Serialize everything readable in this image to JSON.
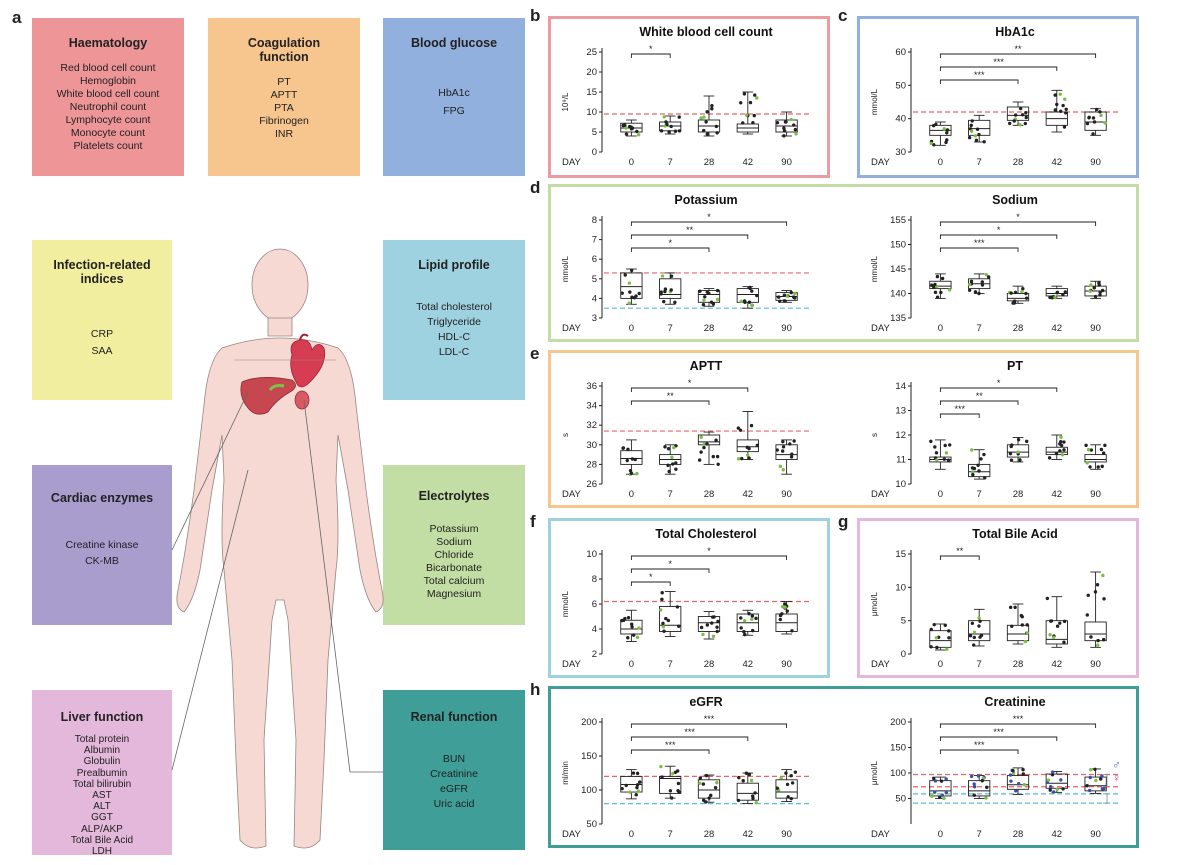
{
  "panel_labels": [
    "a",
    "b",
    "c",
    "d",
    "e",
    "f",
    "g",
    "h"
  ],
  "categories": [
    {
      "id": "haematology",
      "title": "Haematology",
      "color": "#ee9598",
      "items": [
        "Red blood cell count",
        "Hemoglobin",
        "White blood cell count",
        "Neutrophil count",
        "Lymphocyte count",
        "Monocyte count",
        "Platelets count"
      ]
    },
    {
      "id": "coagulation",
      "title": "Coagulation function",
      "color": "#f7c58e",
      "items": [
        "PT",
        "APTT",
        "PTA",
        "Fibrinogen",
        "INR"
      ]
    },
    {
      "id": "glucose",
      "title": "Blood glucose",
      "color": "#92b0dd",
      "items": [
        "HbA1c",
        "FPG"
      ]
    },
    {
      "id": "infection",
      "title": "Infection-related indices",
      "color": "#f2ee9f",
      "items": [
        "CRP",
        "SAA"
      ]
    },
    {
      "id": "lipid",
      "title": "Lipid profile",
      "color": "#9fd2e0",
      "items": [
        "Total cholesterol",
        "Triglyceride",
        "HDL-C",
        "LDL-C"
      ]
    },
    {
      "id": "cardiac",
      "title": "Cardiac enzymes",
      "color": "#a89dcd",
      "items": [
        "Creatine kinase",
        "CK-MB"
      ]
    },
    {
      "id": "electrolytes",
      "title": "Electrolytes",
      "color": "#c3dea5",
      "items": [
        "Potassium",
        "Sodium",
        "Chloride",
        "Bicarbonate",
        "Total calcium",
        "Magnesium"
      ]
    },
    {
      "id": "liver",
      "title": "Liver function",
      "color": "#e4b8da",
      "items": [
        "Total protein",
        "Albumin",
        "Globulin",
        "Prealbumin",
        "Total bilirubin",
        "AST",
        "ALT",
        "GGT",
        "ALP/AKP",
        "Total Bile Acid",
        "LDH"
      ]
    },
    {
      "id": "renal",
      "title": "Renal function",
      "color": "#3f9e98",
      "items": [
        "BUN",
        "Creatinine",
        "eGFR",
        "Uric acid"
      ]
    }
  ],
  "colors": {
    "ref_red": "#e8636b",
    "ref_blue": "#5ab7e0",
    "point_black": "#222222",
    "point_green": "#79c043",
    "point_blue": "#3a4fa5",
    "male_blue": "#3b6fd1",
    "female_pink": "#d0448f"
  },
  "chart_data": [
    {
      "id": "wbc",
      "panel": "b",
      "type": "box",
      "title": "White blood cell count",
      "ylabel": "10⁹/L",
      "xlabel": "DAY",
      "categories": [
        "0",
        "7",
        "28",
        "42",
        "90"
      ],
      "ylim": [
        0,
        25
      ],
      "yticks": [
        0,
        5,
        10,
        15,
        20,
        25
      ],
      "boxes": [
        {
          "min": 4,
          "q1": 5,
          "median": 6,
          "q3": 7.2,
          "max": 8
        },
        {
          "min": 4.5,
          "q1": 5.3,
          "median": 6.5,
          "q3": 7.5,
          "max": 9
        },
        {
          "min": 4,
          "q1": 5,
          "median": 6.5,
          "q3": 8,
          "max": 14
        },
        {
          "min": 4.5,
          "q1": 5,
          "median": 6,
          "q3": 7,
          "max": 15
        },
        {
          "min": 4,
          "q1": 5,
          "median": 6.5,
          "q3": 8,
          "max": 10
        }
      ],
      "ref_lines": [
        {
          "value": 9.5,
          "color": "red"
        }
      ],
      "significance": [
        {
          "from": "0",
          "to": "7",
          "label": "*"
        }
      ]
    },
    {
      "id": "hba1c",
      "panel": "c",
      "type": "box",
      "title": "HbA1c",
      "ylabel": "mmol/L",
      "xlabel": "DAY",
      "categories": [
        "0",
        "7",
        "28",
        "42",
        "90"
      ],
      "ylim": [
        30,
        60
      ],
      "yticks": [
        30,
        40,
        50,
        60
      ],
      "boxes": [
        {
          "min": 32,
          "q1": 35,
          "median": 36.5,
          "q3": 38,
          "max": 39
        },
        {
          "min": 33,
          "q1": 35,
          "median": 37,
          "q3": 39.5,
          "max": 41
        },
        {
          "min": 38,
          "q1": 39.5,
          "median": 41,
          "q3": 43.5,
          "max": 45
        },
        {
          "min": 36,
          "q1": 38,
          "median": 40,
          "q3": 42,
          "max": 48.5
        },
        {
          "min": 35,
          "q1": 36.5,
          "median": 39,
          "q3": 42,
          "max": 43
        }
      ],
      "ref_lines": [
        {
          "value": 42,
          "color": "red"
        }
      ],
      "significance": [
        {
          "from": "0",
          "to": "90",
          "label": "**"
        },
        {
          "from": "0",
          "to": "42",
          "label": "***"
        },
        {
          "from": "0",
          "to": "28",
          "label": "***"
        }
      ]
    },
    {
      "id": "potassium",
      "panel": "d",
      "type": "box",
      "title": "Potassium",
      "ylabel": "mmol/L",
      "xlabel": "DAY",
      "categories": [
        "0",
        "7",
        "28",
        "42",
        "90"
      ],
      "ylim": [
        3,
        8
      ],
      "yticks": [
        3,
        4,
        5,
        6,
        7,
        8
      ],
      "boxes": [
        {
          "min": 3.7,
          "q1": 4,
          "median": 4.6,
          "q3": 5.3,
          "max": 5.5
        },
        {
          "min": 3.7,
          "q1": 4,
          "median": 4.2,
          "q3": 5,
          "max": 5.3
        },
        {
          "min": 3.6,
          "q1": 3.8,
          "median": 4.2,
          "q3": 4.4,
          "max": 4.5
        },
        {
          "min": 3.5,
          "q1": 3.8,
          "median": 4.2,
          "q3": 4.5,
          "max": 4.6
        },
        {
          "min": 3.8,
          "q1": 3.9,
          "median": 4.1,
          "q3": 4.3,
          "max": 4.4
        }
      ],
      "ref_lines": [
        {
          "value": 5.3,
          "color": "red"
        },
        {
          "value": 3.5,
          "color": "blue"
        }
      ],
      "significance": [
        {
          "from": "0",
          "to": "90",
          "label": "*"
        },
        {
          "from": "0",
          "to": "42",
          "label": "**"
        },
        {
          "from": "0",
          "to": "28",
          "label": "*"
        }
      ]
    },
    {
      "id": "sodium",
      "panel": "d",
      "type": "box",
      "title": "Sodium",
      "ylabel": "mmol/L",
      "xlabel": "DAY",
      "categories": [
        "0",
        "7",
        "28",
        "42",
        "90"
      ],
      "ylim": [
        135,
        155
      ],
      "yticks": [
        135,
        140,
        145,
        150,
        155
      ],
      "boxes": [
        {
          "min": 139,
          "q1": 141,
          "median": 141.5,
          "q3": 142.5,
          "max": 144
        },
        {
          "min": 140,
          "q1": 141,
          "median": 142,
          "q3": 143,
          "max": 144
        },
        {
          "min": 138,
          "q1": 138.5,
          "median": 139,
          "q3": 140,
          "max": 141.5
        },
        {
          "min": 139,
          "q1": 139.5,
          "median": 140,
          "q3": 141,
          "max": 141.5
        },
        {
          "min": 139,
          "q1": 139.5,
          "median": 140.5,
          "q3": 141.5,
          "max": 142.5
        }
      ],
      "ref_lines": [],
      "significance": [
        {
          "from": "0",
          "to": "90",
          "label": "*"
        },
        {
          "from": "0",
          "to": "42",
          "label": "*"
        },
        {
          "from": "0",
          "to": "28",
          "label": "***"
        }
      ]
    },
    {
      "id": "aptt",
      "panel": "e",
      "type": "box",
      "title": "APTT",
      "ylabel": "s",
      "xlabel": "DAY",
      "categories": [
        "0",
        "7",
        "28",
        "42",
        "90"
      ],
      "ylim": [
        26,
        36
      ],
      "yticks": [
        26,
        28,
        30,
        32,
        34,
        36
      ],
      "boxes": [
        {
          "min": 27,
          "q1": 28,
          "median": 28.6,
          "q3": 29.4,
          "max": 30.5
        },
        {
          "min": 27,
          "q1": 28,
          "median": 28.5,
          "q3": 29,
          "max": 30
        },
        {
          "min": 28,
          "q1": 30,
          "median": 30.3,
          "q3": 31,
          "max": 31.3
        },
        {
          "min": 28.5,
          "q1": 29.3,
          "median": 29.8,
          "q3": 30.5,
          "max": 33.4
        },
        {
          "min": 27,
          "q1": 28.5,
          "median": 29,
          "q3": 30,
          "max": 30.5
        }
      ],
      "ref_lines": [
        {
          "value": 31.4,
          "color": "red"
        }
      ],
      "significance": [
        {
          "from": "0",
          "to": "42",
          "label": "*"
        },
        {
          "from": "0",
          "to": "28",
          "label": "**"
        }
      ]
    },
    {
      "id": "pt",
      "panel": "e",
      "type": "box",
      "title": "PT",
      "ylabel": "s",
      "xlabel": "DAY",
      "categories": [
        "0",
        "7",
        "28",
        "42",
        "90"
      ],
      "ylim": [
        10,
        14
      ],
      "yticks": [
        10,
        11,
        12,
        13,
        14
      ],
      "boxes": [
        {
          "min": 10.6,
          "q1": 10.9,
          "median": 11,
          "q3": 11.1,
          "max": 11.8
        },
        {
          "min": 10.2,
          "q1": 10.3,
          "median": 10.5,
          "q3": 10.8,
          "max": 11.4
        },
        {
          "min": 10.9,
          "q1": 11.1,
          "median": 11.3,
          "q3": 11.6,
          "max": 11.9
        },
        {
          "min": 11,
          "q1": 11.2,
          "median": 11.3,
          "q3": 11.5,
          "max": 12
        },
        {
          "min": 10.6,
          "q1": 10.9,
          "median": 11,
          "q3": 11.2,
          "max": 11.6
        }
      ],
      "ref_lines": [],
      "significance": [
        {
          "from": "0",
          "to": "42",
          "label": "*"
        },
        {
          "from": "0",
          "to": "28",
          "label": "**"
        },
        {
          "from": "0",
          "to": "7",
          "label": "***"
        }
      ]
    },
    {
      "id": "tc",
      "panel": "f",
      "type": "box",
      "title": "Total Cholesterol",
      "ylabel": "mmol/L",
      "xlabel": "DAY",
      "categories": [
        "0",
        "7",
        "28",
        "42",
        "90"
      ],
      "ylim": [
        2,
        10
      ],
      "yticks": [
        2,
        4,
        6,
        8,
        10
      ],
      "boxes": [
        {
          "min": 3,
          "q1": 3.6,
          "median": 4,
          "q3": 4.7,
          "max": 5.5
        },
        {
          "min": 3.4,
          "q1": 3.8,
          "median": 4.3,
          "q3": 5.8,
          "max": 7
        },
        {
          "min": 3.2,
          "q1": 3.8,
          "median": 4.5,
          "q3": 5,
          "max": 5.4
        },
        {
          "min": 3.5,
          "q1": 3.8,
          "median": 4.5,
          "q3": 5.2,
          "max": 5.5
        },
        {
          "min": 3.6,
          "q1": 3.8,
          "median": 4.5,
          "q3": 5.2,
          "max": 6.2
        }
      ],
      "ref_lines": [
        {
          "value": 6.2,
          "color": "red"
        }
      ],
      "significance": [
        {
          "from": "0",
          "to": "90",
          "label": "*"
        },
        {
          "from": "0",
          "to": "28",
          "label": "*"
        },
        {
          "from": "0",
          "to": "7",
          "label": "*"
        }
      ]
    },
    {
      "id": "tba",
      "panel": "g",
      "type": "box",
      "title": "Total Bile Acid",
      "ylabel": "μmol/L",
      "xlabel": "DAY",
      "categories": [
        "0",
        "7",
        "28",
        "42",
        "90"
      ],
      "ylim": [
        0,
        15
      ],
      "yticks": [
        0,
        5,
        10,
        15
      ],
      "boxes": [
        {
          "min": 0.6,
          "q1": 1,
          "median": 2,
          "q3": 3.5,
          "max": 4.5
        },
        {
          "min": 1.2,
          "q1": 2,
          "median": 3,
          "q3": 5,
          "max": 6.7
        },
        {
          "min": 1.5,
          "q1": 2,
          "median": 3,
          "q3": 4.3,
          "max": 7.5
        },
        {
          "min": 1,
          "q1": 1.5,
          "median": 2.2,
          "q3": 5,
          "max": 8.6
        },
        {
          "min": 1,
          "q1": 2,
          "median": 3,
          "q3": 4.8,
          "max": 12.3
        }
      ],
      "ref_lines": [],
      "significance": [
        {
          "from": "0",
          "to": "7",
          "label": "**"
        }
      ]
    },
    {
      "id": "egfr",
      "panel": "h",
      "type": "box",
      "title": "eGFR",
      "ylabel": "ml/min",
      "xlabel": "DAY",
      "categories": [
        "0",
        "7",
        "28",
        "42",
        "90"
      ],
      "ylim": [
        50,
        200
      ],
      "yticks": [
        50,
        100,
        150,
        200
      ],
      "boxes": [
        {
          "min": 87,
          "q1": 97,
          "median": 108,
          "q3": 120,
          "max": 130
        },
        {
          "min": 88,
          "q1": 95,
          "median": 117,
          "q3": 120,
          "max": 135
        },
        {
          "min": 82,
          "q1": 88,
          "median": 100,
          "q3": 115,
          "max": 122
        },
        {
          "min": 80,
          "q1": 85,
          "median": 95,
          "q3": 110,
          "max": 125
        },
        {
          "min": 83,
          "q1": 88,
          "median": 97,
          "q3": 115,
          "max": 130
        }
      ],
      "ref_lines": [
        {
          "value": 120,
          "color": "red"
        },
        {
          "value": 80,
          "color": "blue"
        }
      ],
      "significance": [
        {
          "from": "0",
          "to": "90",
          "label": "***"
        },
        {
          "from": "0",
          "to": "42",
          "label": "***"
        },
        {
          "from": "0",
          "to": "28",
          "label": "***"
        }
      ]
    },
    {
      "id": "creatinine",
      "panel": "h",
      "type": "box",
      "title": "Creatinine",
      "ylabel": "μmol/L",
      "xlabel": "DAY",
      "categories": [
        "0",
        "7",
        "28",
        "42",
        "90"
      ],
      "ylim": [
        0,
        200
      ],
      "yticks": [
        50,
        100,
        150,
        200
      ],
      "boxes": [
        {
          "min": 50,
          "q1": 55,
          "median": 65,
          "q3": 85,
          "max": 92
        },
        {
          "min": 50,
          "q1": 55,
          "median": 65,
          "q3": 85,
          "max": 95
        },
        {
          "min": 58,
          "q1": 68,
          "median": 77,
          "q3": 95,
          "max": 110
        },
        {
          "min": 62,
          "q1": 70,
          "median": 80,
          "q3": 98,
          "max": 103
        },
        {
          "min": 60,
          "q1": 65,
          "median": 75,
          "q3": 92,
          "max": 108
        }
      ],
      "ref_lines": [
        {
          "value": 97,
          "color": "red"
        },
        {
          "value": 73,
          "color": "red"
        },
        {
          "value": 59,
          "color": "blue"
        },
        {
          "value": 41,
          "color": "blue"
        }
      ],
      "legend_symbols": [
        "♂",
        "♀"
      ],
      "significance": [
        {
          "from": "0",
          "to": "90",
          "label": "***"
        },
        {
          "from": "0",
          "to": "42",
          "label": "***"
        },
        {
          "from": "0",
          "to": "28",
          "label": "***"
        }
      ]
    }
  ]
}
